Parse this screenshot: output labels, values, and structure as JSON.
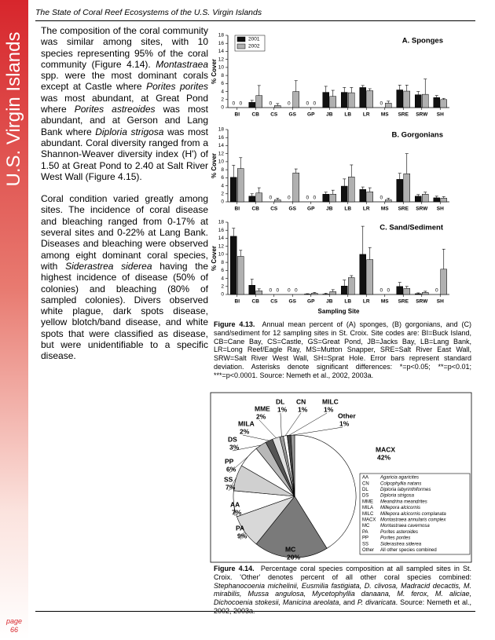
{
  "header": {
    "title": "The State of Coral Reef Ecosystems of the U.S. Virgin Islands"
  },
  "sidebar": {
    "title": "U.S. Virgin Islands",
    "page_label": "page",
    "page_number": 66
  },
  "body": {
    "paragraphs": [
      [
        "The composition of the coral community was similar among sites, with 10 species representing 95% of the coral community (Figure 4.14). ",
        "Montastraea",
        " spp. were the most dominant corals except at Castle where ",
        "Porites porites",
        " was most abundant, at Great Pond where ",
        "Porites astreoides",
        " was most abundant, and at Gerson and Lang Bank where ",
        "Diploria strigosa",
        " was most abundant. Coral diversity ranged from a Shannon-Weaver diversity index (H') of 1.50 at Great Pond to 2.40 at Salt River West Wall (Figure 4.15)."
      ],
      [
        "Coral condition varied greatly among sites. The incidence of coral disease and bleaching ranged from 0-17% at several sites and 0-22% at Lang Bank. Diseases and bleaching were observed among eight dominant coral species, with ",
        "Siderastrea siderea",
        " having the highest incidence of disease (50% of colonies) and bleaching (80% of sampled colonies). Divers observed white plague, dark spots disease, yellow blotch/band disease, and white spots that were classified as disease, but were unidentifiable to a specific disease."
      ]
    ]
  },
  "figure_4_13": {
    "caption_label": "Figure 4.13.",
    "caption": [
      "Annual mean percent of (A) sponges, (B) gorgonians, and (C) sand/sediment for 12 sampling sites in St. Croix. Site codes are: BI=Buck Island, CB=Cane Bay, CS=Castle, GS=Great Pond, JB=Jacks Bay, LB=Lang Bank, LR=Long Reef/Eagle Ray, MS=Mutton Snapper, SRE=Salt River East Wall, SRW=Salt River West Wall, SH=Sprat Hole. Error bars represent standard deviation. Asterisks denote significant differences: *=p<0.05; **=p<0.01; ***=p<0.0001. Source: Nemeth et al., 2002, 2003a."
    ]
  },
  "figure_4_14": {
    "caption_label": "Figure 4.14.",
    "caption": [
      "Percentage coral species composition at all sampled sites in St. Croix. 'Other' denotes percent of all other coral species combined: ",
      "Stephanocoenia michelinii, Eusmilia fastigiata, D. clivosa, Madracid decactis, M. mirabilis, Mussa angulosa, Mycetophyllia danaana, M. ferox, M. aliciae, Dichocoenia stokesii, Manicina areolata",
      ", and ",
      "P. divaricata",
      ". Source: Nemeth et al., 2002, 2003a."
    ]
  },
  "chart_data": [
    {
      "type": "bar",
      "title": "A. Sponges",
      "ylabel": "% Cover",
      "categories": [
        "BI",
        "CB",
        "CS",
        "GS",
        "GP",
        "JB",
        "LB",
        "LR",
        "MS",
        "SRE",
        "SRW",
        "SH"
      ],
      "series": [
        {
          "name": "2001",
          "color": "#111111",
          "values": [
            0,
            1.3,
            0,
            0,
            0,
            3.8,
            3.8,
            5,
            0,
            4.4,
            3.2,
            2.5
          ],
          "errors": [
            0,
            0.5,
            0,
            0,
            0,
            1.5,
            1.2,
            0.5,
            0,
            1.2,
            0.8,
            0.5
          ]
        },
        {
          "name": "2002",
          "color": "#b0b0b0",
          "values": [
            0,
            3,
            0.5,
            4,
            0,
            2.8,
            3.7,
            4.2,
            1.1,
            4.1,
            3.3,
            2
          ],
          "errors": [
            0,
            2.5,
            0.5,
            2.7,
            0,
            1.5,
            1.3,
            0.5,
            0.5,
            1.5,
            3.8,
            0.3
          ]
        }
      ],
      "ylim": [
        0,
        18
      ],
      "yticks": [
        0,
        2,
        4,
        6,
        8,
        10,
        12,
        14,
        16,
        18
      ]
    },
    {
      "type": "bar",
      "title": "B. Gorgonians",
      "ylabel": "% Cover",
      "categories": [
        "BI",
        "CB",
        "CS",
        "GS",
        "GP",
        "JB",
        "LB",
        "LR",
        "MS",
        "SRE",
        "SRW",
        "SH"
      ],
      "series": [
        {
          "color": "#111111",
          "values": [
            6.1,
            1.4,
            0,
            0,
            0,
            1.9,
            3.9,
            3.1,
            0,
            5.6,
            1.4,
            1
          ],
          "errors": [
            3,
            0.6,
            0,
            0,
            0,
            0.5,
            1.8,
            0.6,
            0,
            1.5,
            0.4,
            0.4
          ]
        },
        {
          "color": "#b0b0b0",
          "values": [
            8.3,
            2.2,
            0.5,
            7.2,
            0,
            1.9,
            6.2,
            2.5,
            0.5,
            7,
            1.9,
            0.9
          ],
          "errors": [
            2.7,
            1.3,
            0.4,
            1,
            0,
            1,
            3,
            1,
            0.4,
            5,
            0.5,
            0.4
          ]
        }
      ],
      "ylim": [
        0,
        18
      ],
      "yticks": [
        0,
        2,
        4,
        6,
        8,
        10,
        12,
        14,
        16,
        18
      ]
    },
    {
      "type": "bar",
      "title": "C. Sand/Sediment",
      "ylabel": "% Cover",
      "xlabel": "Sampling Site",
      "categories": [
        "BI",
        "CB",
        "CS",
        "GS",
        "GP",
        "JB",
        "LB",
        "LR",
        "MS",
        "SRE",
        "SRW",
        "SH"
      ],
      "series": [
        {
          "color": "#111111",
          "values": [
            14.5,
            2.3,
            0,
            0,
            0.1,
            0.1,
            2.1,
            10,
            0,
            2,
            0.2,
            0
          ],
          "errors": [
            2,
            1.5,
            0,
            0,
            0.1,
            0.2,
            1.5,
            7,
            0,
            1,
            0.2,
            0
          ]
        },
        {
          "color": "#b0b0b0",
          "values": [
            9.5,
            0.9,
            0,
            0,
            0.3,
            0.7,
            4.2,
            8.7,
            0,
            1.5,
            0.5,
            6.3
          ],
          "errors": [
            1.5,
            0.5,
            0,
            0,
            0.2,
            0.5,
            0.5,
            3,
            0,
            0.5,
            0.3,
            5
          ]
        }
      ],
      "ylim": [
        0,
        18
      ],
      "yticks": [
        0,
        2,
        4,
        6,
        8,
        10,
        12,
        14,
        16,
        18
      ]
    },
    {
      "type": "pie",
      "categories": [
        "MACX",
        "MC",
        "PA",
        "AA",
        "SS",
        "PP",
        "DS",
        "MILA",
        "MME",
        "DL",
        "CN",
        "MILC",
        "Other"
      ],
      "values": [
        42,
        20,
        9,
        7,
        7,
        6,
        3,
        2,
        2,
        1,
        1,
        1,
        1
      ],
      "value_labels": [
        "42%",
        "20%",
        "9%",
        "7%",
        "7%",
        "6%",
        "3%",
        "2%",
        "2%",
        "1%",
        "1%",
        "1%",
        "1%"
      ],
      "colors": [
        "#ffffff",
        "#7a7a7a",
        "#d8d8d8",
        "#ffffff",
        "#d0d0d0",
        "#ffffff",
        "#b8b8b8",
        "#555555",
        "#e0e0e0",
        "#999999",
        "#ffffff",
        "#444444",
        "#9a9a9a"
      ],
      "legend": [
        {
          "code": "AA",
          "description": "Agaricia agaricites"
        },
        {
          "code": "CN",
          "description": "Colpophyllia natans"
        },
        {
          "code": "DL",
          "description": "Diploria labyrinthiformes"
        },
        {
          "code": "DS",
          "description": "Diploria strigosa"
        },
        {
          "code": "MME",
          "description": "Meandrina meandrites"
        },
        {
          "code": "MILA",
          "description": "Millepora alcicornis"
        },
        {
          "code": "MILC",
          "description": "Millepora alcicornis complanata"
        },
        {
          "code": "MACX",
          "description": "Montastraea annularis complex"
        },
        {
          "code": "MC",
          "description": "Montastraea cavernosa"
        },
        {
          "code": "PA",
          "description": "Porites asteroides"
        },
        {
          "code": "PP",
          "description": "Porites porites"
        },
        {
          "code": "SS",
          "description": "Siderastrea siderea"
        },
        {
          "code": "Other",
          "description": "All other species combined"
        }
      ]
    }
  ]
}
